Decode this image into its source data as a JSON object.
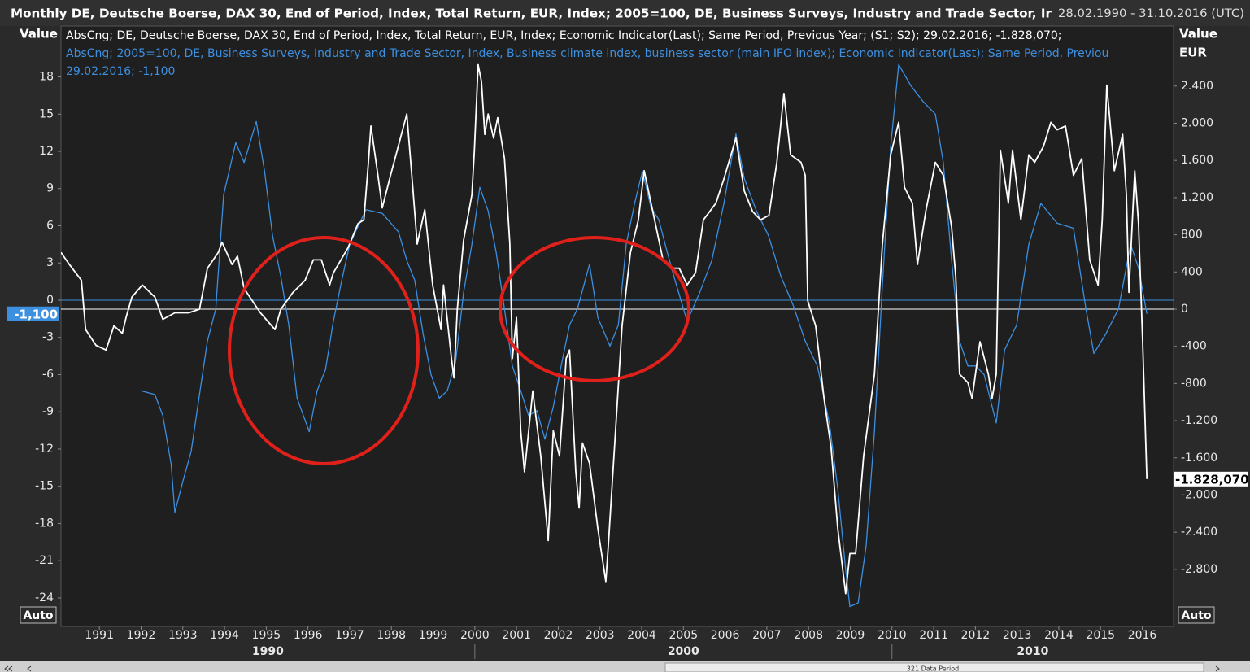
{
  "chart_data": {
    "type": "line",
    "title": "Monthly DE, Deutsche Boerse, DAX 30, End of Period, Index, Total Return, EUR, Index; 2005=100, DE, Business Surveys, Industry and Trade Sector, Ir",
    "date_range": "28.02.1990 - 31.10.2016 (UTC)",
    "y_label": "Value",
    "y2_label": "Value",
    "y2_unit": "EUR",
    "autoscale_button": "Auto",
    "scrollbar_label": "321 Data Period",
    "grid": false,
    "xlim": [
      1990.08,
      2016.75
    ],
    "xticks": [
      1991,
      1992,
      1993,
      1994,
      1995,
      1996,
      1997,
      1998,
      1999,
      2000,
      2001,
      2002,
      2003,
      2004,
      2005,
      2006,
      2007,
      2008,
      2009,
      2010,
      2011,
      2012,
      2013,
      2014,
      2015,
      2016
    ],
    "x_groups": [
      1990,
      2000,
      2010
    ],
    "ylim": [
      -26.3,
      22.1
    ],
    "yticks": [
      18,
      15,
      12,
      9,
      6,
      3,
      0,
      -3,
      -6,
      -9,
      -12,
      -15,
      -18,
      -21,
      -24
    ],
    "y2lim": [
      -3414,
      3046
    ],
    "y2ticks": [
      {
        "value": 2400,
        "label": "2.400"
      },
      {
        "value": 2000,
        "label": "2.000"
      },
      {
        "value": 1600,
        "label": "1.600"
      },
      {
        "value": 1200,
        "label": "1.200"
      },
      800,
      400,
      0,
      -400,
      -800,
      {
        "value": -1200,
        "label": "-1.200"
      },
      {
        "value": -1600,
        "label": "-1.600"
      },
      {
        "value": -2000,
        "label": "-2.000"
      },
      {
        "value": -2400,
        "label": "-2.400"
      },
      {
        "value": -2800,
        "label": "-2.800"
      }
    ],
    "series": [
      {
        "name": "AbsCng; DE, Deutsche Boerse, DAX 30, End of Period, Index, Total Return, EUR, Index; Economic Indicator(Last); Same Period, Previous Year; (S1; S2); 29.02.2016; -1.828,070;",
        "color": "#ffffff",
        "axis": "y2",
        "last_label": "-1.828,070",
        "x": [
          1990.08,
          1990.28,
          1990.57,
          1990.67,
          1990.92,
          1991.16,
          1991.35,
          1991.55,
          1991.64,
          1991.78,
          1992.03,
          1992.33,
          1992.52,
          1992.81,
          1993.14,
          1993.4,
          1993.59,
          1993.85,
          1993.94,
          1994.18,
          1994.31,
          1994.47,
          1994.86,
          1995.21,
          1995.35,
          1995.64,
          1995.93,
          1996.13,
          1996.32,
          1996.52,
          1996.61,
          1996.96,
          1997.2,
          1997.34,
          1997.45,
          1997.51,
          1997.69,
          1997.78,
          1997.98,
          1998.27,
          1998.37,
          1998.52,
          1998.62,
          1998.8,
          1998.99,
          1999.19,
          1999.25,
          1999.44,
          1999.5,
          1999.58,
          1999.73,
          1999.93,
          1999.99,
          2000.08,
          2000.16,
          2000.24,
          2000.32,
          2000.45,
          2000.55,
          2000.71,
          2000.84,
          2000.9,
          2001.0,
          2001.1,
          2001.19,
          2001.39,
          2001.58,
          2001.76,
          2001.88,
          2002.03,
          2002.19,
          2002.27,
          2002.42,
          2002.5,
          2002.58,
          2002.75,
          2002.95,
          2003.14,
          2003.2,
          2003.36,
          2003.53,
          2003.73,
          2003.92,
          2004.06,
          2004.31,
          2004.51,
          2004.7,
          2004.9,
          2005.09,
          2005.29,
          2005.48,
          2005.78,
          2005.97,
          2006.26,
          2006.46,
          2006.66,
          2006.85,
          2007.05,
          2007.24,
          2007.41,
          2007.57,
          2007.82,
          2007.92,
          2007.98,
          2008.17,
          2008.37,
          2008.54,
          2008.7,
          2008.89,
          2008.99,
          2009.13,
          2009.32,
          2009.58,
          2009.77,
          2009.97,
          2010.16,
          2010.3,
          2010.49,
          2010.61,
          2010.81,
          2011.04,
          2011.23,
          2011.43,
          2011.53,
          2011.62,
          2011.82,
          2011.92,
          2012.11,
          2012.31,
          2012.4,
          2012.5,
          2012.6,
          2012.79,
          2012.89,
          2013.09,
          2013.28,
          2013.42,
          2013.63,
          2013.81,
          2013.96,
          2014.16,
          2014.35,
          2014.55,
          2014.74,
          2014.94,
          2015.04,
          2015.15,
          2015.33,
          2015.53,
          2015.62,
          2015.68,
          2015.82,
          2015.91,
          2016.01,
          2016.11
        ],
        "values": [
          610,
          480,
          310,
          -220,
          -390,
          -440,
          -180,
          -260,
          -90,
          130,
          260,
          130,
          -110,
          -40,
          -40,
          0,
          440,
          610,
          720,
          480,
          570,
          220,
          -40,
          -220,
          0,
          180,
          310,
          530,
          530,
          260,
          390,
          660,
          920,
          960,
          1580,
          1970,
          1400,
          1090,
          1440,
          1930,
          2100,
          1270,
          700,
          1070,
          260,
          -220,
          260,
          -530,
          -740,
          0,
          740,
          1230,
          1710,
          2630,
          2450,
          1880,
          2100,
          1840,
          2060,
          1620,
          700,
          -530,
          -90,
          -1310,
          -1750,
          -880,
          -1580,
          -2490,
          -1310,
          -1580,
          -530,
          -440,
          -1750,
          -2140,
          -1440,
          -1660,
          -2360,
          -2930,
          -2540,
          -1400,
          -180,
          610,
          960,
          1490,
          960,
          530,
          440,
          440,
          260,
          390,
          960,
          1140,
          1400,
          1840,
          1270,
          1050,
          960,
          1010,
          1580,
          2320,
          1660,
          1580,
          1440,
          90,
          -180,
          -960,
          -1490,
          -2360,
          -3060,
          -2630,
          -2630,
          -1580,
          -700,
          700,
          1660,
          2010,
          1310,
          1140,
          480,
          1050,
          1580,
          1440,
          880,
          350,
          -700,
          -790,
          -960,
          -350,
          -700,
          -960,
          -700,
          1710,
          1140,
          1710,
          960,
          1660,
          1580,
          1750,
          2010,
          1930,
          1970,
          1440,
          1620,
          530,
          260,
          960,
          2410,
          1490,
          1880,
          1230,
          180,
          1490,
          920,
          -350,
          -1828.07
        ]
      },
      {
        "name": "AbsCng; 2005=100, DE, Business Surveys, Industry and Trade Sector, Index, Business climate index, business sector (main IFO index); Economic Indicator(Last); Same Period, Previou",
        "legend_suffix": "29.02.2016; -1,100",
        "color": "#3d8fe0",
        "axis": "y",
        "last_label": "-1,100",
        "x": [
          1991.99,
          1992.33,
          1992.52,
          1992.72,
          1992.81,
          1993.01,
          1993.2,
          1993.4,
          1993.59,
          1993.79,
          1993.98,
          1994.27,
          1994.47,
          1994.76,
          1994.96,
          1995.15,
          1995.35,
          1995.54,
          1995.74,
          1996.03,
          1996.22,
          1996.42,
          1996.61,
          1996.81,
          1997.0,
          1997.39,
          1997.78,
          1998.17,
          1998.37,
          1998.56,
          1998.76,
          1998.95,
          1999.15,
          1999.34,
          1999.54,
          1999.73,
          1999.93,
          2000.12,
          2000.32,
          2000.51,
          2000.71,
          2000.9,
          2001.1,
          2001.29,
          2001.49,
          2001.68,
          2001.88,
          2002.07,
          2002.27,
          2002.46,
          2002.75,
          2002.95,
          2003.24,
          2003.44,
          2003.63,
          2003.83,
          2004.02,
          2004.22,
          2004.41,
          2004.61,
          2004.8,
          2005.09,
          2005.39,
          2005.68,
          2005.97,
          2006.26,
          2006.46,
          2006.75,
          2007.04,
          2007.34,
          2007.63,
          2007.92,
          2008.21,
          2008.5,
          2008.7,
          2008.89,
          2008.99,
          2009.19,
          2009.38,
          2009.58,
          2009.77,
          2009.97,
          2010.16,
          2010.45,
          2010.75,
          2011.04,
          2011.23,
          2011.43,
          2011.62,
          2011.82,
          2012.01,
          2012.21,
          2012.5,
          2012.7,
          2012.99,
          2013.28,
          2013.57,
          2013.96,
          2014.35,
          2014.65,
          2014.84,
          2015.13,
          2015.43,
          2015.72,
          2015.91,
          2016.11
        ],
        "values": [
          -7.3,
          -7.6,
          -9.3,
          -13.2,
          -17.1,
          -14.5,
          -12.2,
          -7.6,
          -3.3,
          -0.7,
          8.5,
          12.7,
          11.1,
          14.4,
          10.4,
          5.2,
          1.9,
          -2.0,
          -7.9,
          -10.6,
          -7.3,
          -5.6,
          -1.7,
          1.6,
          4.5,
          7.3,
          7.0,
          5.5,
          3.2,
          1.6,
          -2.7,
          -6.0,
          -7.9,
          -7.3,
          -5.0,
          0.6,
          4.5,
          9.1,
          7.2,
          3.9,
          -0.7,
          -5.3,
          -7.3,
          -9.3,
          -8.9,
          -11.2,
          -8.6,
          -5.3,
          -2.0,
          -0.7,
          2.9,
          -1.4,
          -3.7,
          -2.0,
          4.5,
          7.8,
          10.4,
          7.5,
          6.5,
          3.9,
          1.6,
          -1.7,
          0.6,
          3.2,
          7.8,
          13.4,
          9.8,
          7.2,
          5.2,
          1.9,
          -0.4,
          -3.3,
          -5.3,
          -9.9,
          -15.2,
          -21.7,
          -24.7,
          -24.4,
          -19.8,
          -10.6,
          1.2,
          12.4,
          19.0,
          17.3,
          16.0,
          15.0,
          11.1,
          3.2,
          -3.3,
          -5.3,
          -5.3,
          -6.0,
          -9.9,
          -4.0,
          -2.0,
          4.5,
          7.8,
          6.2,
          5.8,
          -0.7,
          -4.3,
          -2.7,
          -0.7,
          4.5,
          2.6,
          -1.1
        ]
      }
    ]
  }
}
